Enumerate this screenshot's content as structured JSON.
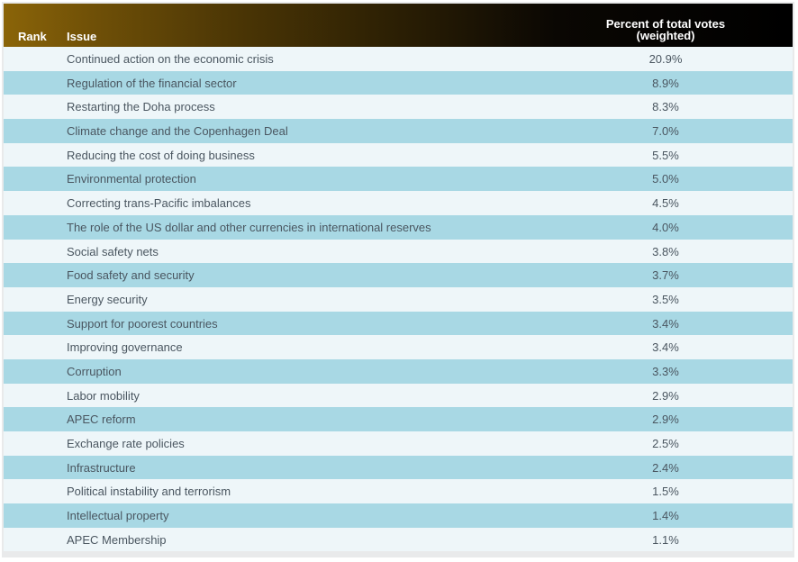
{
  "header": {
    "rank": "Rank",
    "issue": "Issue",
    "percent_line1": "Percent of total votes",
    "percent_line2": "(weighted)"
  },
  "rows": [
    {
      "issue": "Continued action on the economic crisis",
      "percent": "20.9%"
    },
    {
      "issue": "Regulation of the financial sector",
      "percent": "8.9%"
    },
    {
      "issue": "Restarting the Doha process",
      "percent": "8.3%"
    },
    {
      "issue": "Climate change and the Copenhagen Deal",
      "percent": "7.0%"
    },
    {
      "issue": "Reducing the cost of doing business",
      "percent": "5.5%"
    },
    {
      "issue": "Environmental protection",
      "percent": "5.0%"
    },
    {
      "issue": "Correcting trans-Pacific imbalances",
      "percent": "4.5%"
    },
    {
      "issue": "The role of the US dollar and other currencies in international reserves",
      "percent": "4.0%"
    },
    {
      "issue": "Social safety nets",
      "percent": "3.8%"
    },
    {
      "issue": "Food safety and security",
      "percent": "3.7%"
    },
    {
      "issue": "Energy security",
      "percent": "3.5%"
    },
    {
      "issue": "Support for poorest countries",
      "percent": "3.4%"
    },
    {
      "issue": "Improving governance",
      "percent": "3.4%"
    },
    {
      "issue": "Corruption",
      "percent": "3.3%"
    },
    {
      "issue": "Labor mobility",
      "percent": "2.9%"
    },
    {
      "issue": "APEC reform",
      "percent": "2.9%"
    },
    {
      "issue": "Exchange rate policies",
      "percent": "2.5%"
    },
    {
      "issue": "Infrastructure",
      "percent": "2.4%"
    },
    {
      "issue": "Political instability and terrorism",
      "percent": "1.5%"
    },
    {
      "issue": "Intellectual property",
      "percent": "1.4%"
    },
    {
      "issue": "APEC Membership",
      "percent": "1.1%"
    }
  ],
  "colors": {
    "row_light": "#eef6f9",
    "row_blue": "#a8d8e4",
    "text": "#4a5660",
    "header_text": "#ffffff"
  }
}
